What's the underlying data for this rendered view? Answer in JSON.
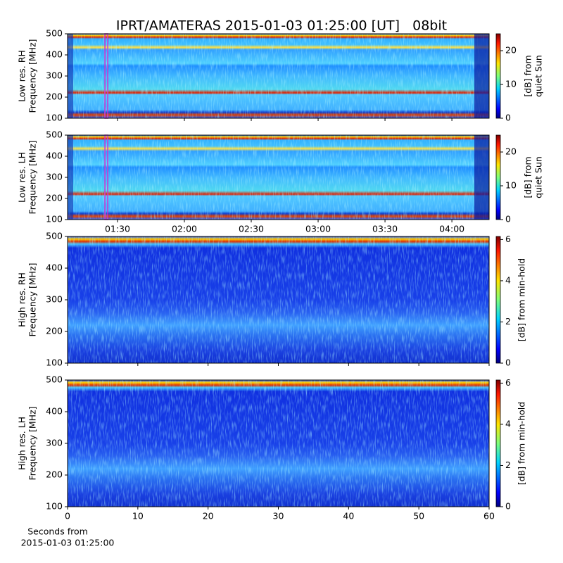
{
  "title": "IPRT/AMATERAS 2015-01-03 01:25:00 [UT]   08bit",
  "chart_data": [
    {
      "type": "heatmap",
      "resolution": "low",
      "ylabel": [
        "Low res. RH",
        "Frequency [MHz]"
      ],
      "xlim": [
        67.6,
        256.7
      ],
      "ylim": [
        100,
        500
      ],
      "yticks": [
        100,
        200,
        300,
        400,
        500
      ],
      "marker": 85,
      "marker_color": "#d030d0",
      "colorbar": {
        "label": [
          "[dB] from",
          "quiet Sun"
        ],
        "lim": [
          0,
          25
        ],
        "ticks": [
          0,
          10,
          20
        ]
      }
    },
    {
      "type": "heatmap",
      "resolution": "low",
      "ylabel": [
        "Low res. LH",
        "Frequency [MHz]"
      ],
      "xlim": [
        67.6,
        256.7
      ],
      "ylim": [
        100,
        500
      ],
      "yticks": [
        100,
        200,
        300,
        400,
        500
      ],
      "xticks": [
        {
          "value": 90,
          "label": "01:30"
        },
        {
          "value": 120,
          "label": "02:00"
        },
        {
          "value": 150,
          "label": "02:30"
        },
        {
          "value": 180,
          "label": "03:00"
        },
        {
          "value": 210,
          "label": "03:30"
        },
        {
          "value": 240,
          "label": "04:00"
        }
      ],
      "marker": 85,
      "marker_color": "#d030d0",
      "colorbar": {
        "label": [
          "[dB] from",
          "quiet Sun"
        ],
        "lim": [
          0,
          25
        ],
        "ticks": [
          0,
          10,
          20
        ]
      }
    },
    {
      "type": "heatmap",
      "resolution": "high",
      "ylabel": [
        "High res. RH",
        "Frequency [MHz]"
      ],
      "xlim": [
        0,
        60
      ],
      "ylim": [
        100,
        500
      ],
      "yticks": [
        100,
        200,
        300,
        400,
        500
      ],
      "colorbar": {
        "label": [
          "[dB] from min-hold"
        ],
        "lim": [
          0,
          6.15
        ],
        "ticks": [
          0,
          2,
          4,
          6
        ]
      }
    },
    {
      "type": "heatmap",
      "resolution": "high",
      "ylabel": [
        "High res. LH",
        "Frequency [MHz]"
      ],
      "xlim": [
        0,
        60
      ],
      "ylim": [
        100,
        500
      ],
      "yticks": [
        100,
        200,
        300,
        400,
        500
      ],
      "xticks": [
        0,
        10,
        20,
        30,
        40,
        50,
        60
      ],
      "xlabel": [
        "Seconds from",
        "2015-01-03 01:25:00"
      ],
      "colorbar": {
        "label": [
          "[dB] from min-hold"
        ],
        "lim": [
          0,
          6.15
        ],
        "ticks": [
          0,
          2,
          4,
          6
        ]
      }
    }
  ]
}
